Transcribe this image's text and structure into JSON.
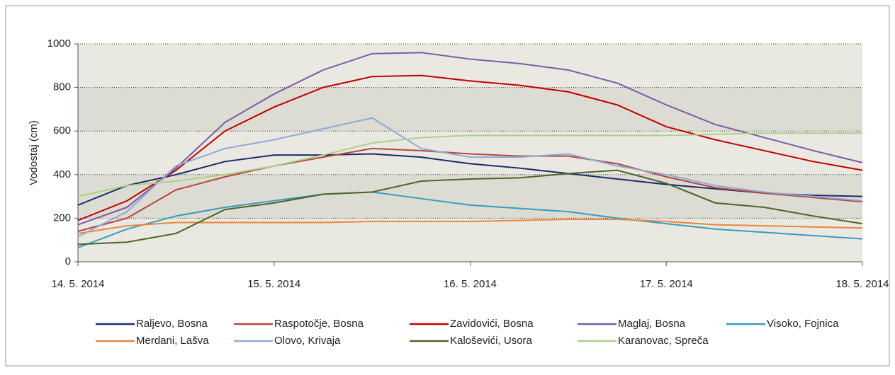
{
  "chart_data": {
    "type": "line",
    "ylabel": "Vodostaj (cm)",
    "x": [
      "14. 5. 2014",
      null,
      null,
      null,
      "15. 5. 2014",
      null,
      null,
      null,
      "16. 5. 2014",
      null,
      null,
      null,
      "17. 5. 2014",
      null,
      null,
      null,
      "18. 5. 2014"
    ],
    "ylim": [
      0,
      1000
    ],
    "yticks": [
      0,
      200,
      400,
      600,
      800,
      1000
    ],
    "grid": true,
    "series": [
      {
        "name": "Raljevo, Bosna",
        "color": "#1b2a6b",
        "values": [
          260,
          350,
          400,
          460,
          490,
          490,
          495,
          480,
          450,
          430,
          405,
          380,
          355,
          335,
          315,
          305,
          300
        ]
      },
      {
        "name": "Raspotočje, Bosna",
        "color": "#b5473f",
        "values": [
          140,
          200,
          330,
          390,
          440,
          480,
          520,
          510,
          495,
          485,
          485,
          450,
          390,
          340,
          315,
          295,
          275
        ]
      },
      {
        "name": "Zavidovići, Bosna",
        "color": "#c00000",
        "values": [
          190,
          280,
          420,
          600,
          710,
          800,
          850,
          855,
          830,
          810,
          780,
          720,
          620,
          560,
          510,
          460,
          420
        ]
      },
      {
        "name": "Maglaj, Bosna",
        "color": "#7b5aa6",
        "values": [
          170,
          250,
          430,
          640,
          770,
          880,
          955,
          960,
          930,
          910,
          880,
          820,
          720,
          630,
          570,
          510,
          455
        ]
      },
      {
        "name": "Visoko, Fojnica",
        "color": "#3a9bbd",
        "values": [
          65,
          150,
          210,
          250,
          280,
          310,
          320,
          290,
          260,
          245,
          230,
          200,
          175,
          150,
          135,
          120,
          105
        ]
      },
      {
        "name": "Merdani, Lašva",
        "color": "#e8883a",
        "values": [
          130,
          165,
          180,
          180,
          180,
          180,
          185,
          185,
          185,
          190,
          195,
          195,
          185,
          170,
          165,
          160,
          155
        ]
      },
      {
        "name": "Olovo, Krivaja",
        "color": "#8eaad8",
        "values": [
          115,
          230,
          440,
          520,
          560,
          610,
          660,
          520,
          480,
          480,
          495,
          440,
          400,
          350,
          320,
          300,
          280
        ]
      },
      {
        "name": "Kaloševići, Usora",
        "color": "#4f6228",
        "values": [
          80,
          90,
          130,
          240,
          270,
          310,
          320,
          370,
          380,
          385,
          405,
          420,
          360,
          270,
          250,
          210,
          175
        ]
      },
      {
        "name": "Karanovac, Spreča",
        "color": "#aed08a",
        "values": [
          300,
          350,
          370,
          400,
          440,
          490,
          545,
          570,
          580,
          580,
          580,
          580,
          580,
          585,
          590,
          590,
          590
        ]
      }
    ]
  }
}
